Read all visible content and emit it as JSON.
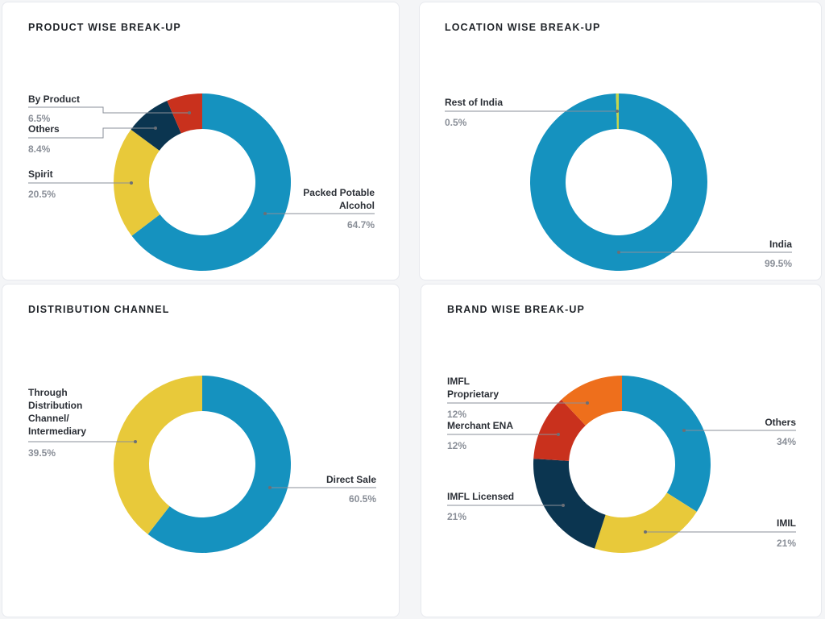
{
  "colors": {
    "blue": "#1592bf",
    "yellow": "#e8c93a",
    "navy": "#0b3550",
    "red": "#c9311d",
    "orange": "#ee6f1c",
    "lime": "#c6d64a"
  },
  "chart_data": [
    {
      "type": "pie",
      "donut": true,
      "title": "PRODUCT WISE BREAK-UP",
      "slices": [
        {
          "label": "Packed Potable Alcohol",
          "value": 64.7,
          "display": "64.7%",
          "color": "#1592bf"
        },
        {
          "label": "Spirit",
          "value": 20.5,
          "display": "20.5%",
          "color": "#e8c93a"
        },
        {
          "label": "Others",
          "value": 8.4,
          "display": "8.4%",
          "color": "#0b3550"
        },
        {
          "label": "By Product",
          "value": 6.5,
          "display": "6.5%",
          "color": "#c9311d"
        }
      ]
    },
    {
      "type": "pie",
      "donut": true,
      "title": "LOCATION WISE BREAK-UP",
      "slices": [
        {
          "label": "India",
          "value": 99.5,
          "display": "99.5%",
          "color": "#1592bf"
        },
        {
          "label": "Rest of India",
          "value": 0.5,
          "display": "0.5%",
          "color": "#c6d64a"
        }
      ]
    },
    {
      "type": "pie",
      "donut": true,
      "title": "DISTRIBUTION CHANNEL",
      "slices": [
        {
          "label": "Direct Sale",
          "value": 60.5,
          "display": "60.5%",
          "color": "#1592bf"
        },
        {
          "label": "Through Distribution Channel/ Intermediary",
          "value": 39.5,
          "display": "39.5%",
          "color": "#e8c93a"
        }
      ]
    },
    {
      "type": "pie",
      "donut": true,
      "title": "BRAND WISE BREAK-UP",
      "slices": [
        {
          "label": "Others",
          "value": 34,
          "display": "34%",
          "color": "#1592bf"
        },
        {
          "label": "IMIL",
          "value": 21,
          "display": "21%",
          "color": "#e8c93a"
        },
        {
          "label": "IMFL Licensed",
          "value": 21,
          "display": "21%",
          "color": "#0b3550"
        },
        {
          "label": "Merchant ENA",
          "value": 12,
          "display": "12%",
          "color": "#c9311d"
        },
        {
          "label": "IMFL Proprietary",
          "value": 12,
          "display": "12%",
          "color": "#ee6f1c"
        }
      ]
    }
  ]
}
